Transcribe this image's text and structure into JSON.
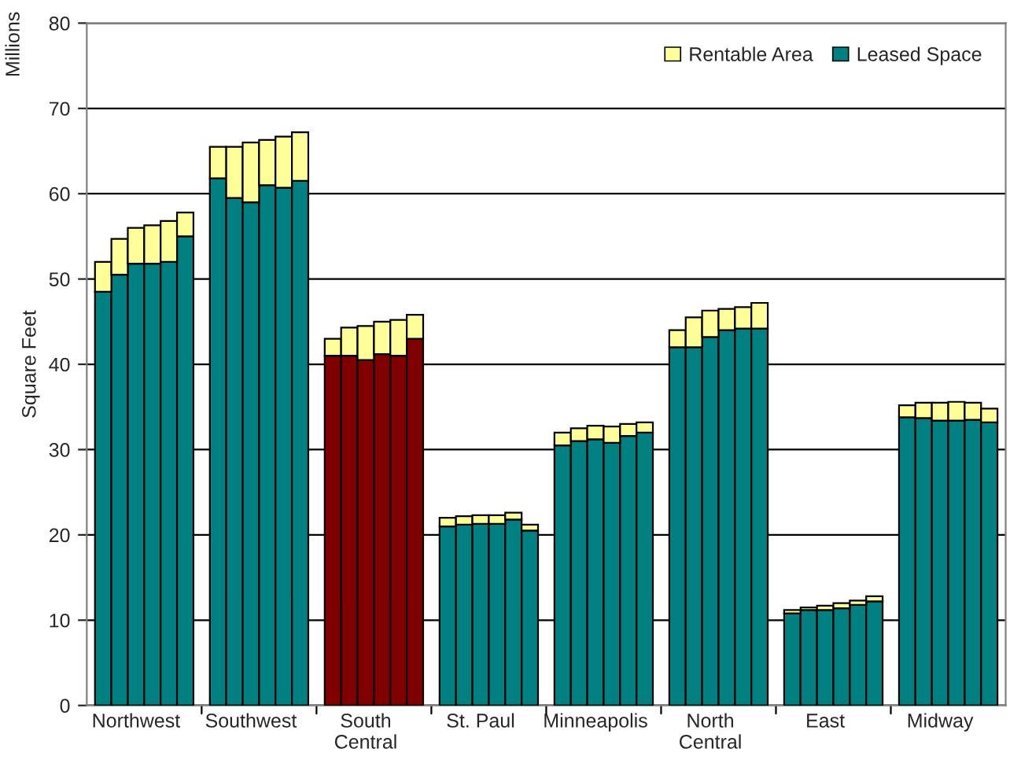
{
  "chart_data": {
    "type": "bar",
    "stacked": true,
    "categories": [
      null,
      null,
      "Northwest",
      null,
      null,
      null,
      null,
      null,
      null,
      "Southwest",
      null,
      null,
      null,
      null,
      null,
      null,
      "South\nCentral",
      null,
      null,
      null,
      null,
      null,
      null,
      "St. Paul",
      null,
      null,
      null,
      null,
      null,
      null,
      "Minneapolis",
      null,
      null,
      null,
      null,
      null,
      null,
      "North\nCentral",
      null,
      null,
      null,
      null,
      null,
      null,
      "East",
      null,
      null,
      null,
      null,
      null,
      null,
      "Midway",
      null,
      null,
      null
    ],
    "series": [
      {
        "name": "Leased Space",
        "color": "#008080",
        "colors": [
          "#008080",
          "#008080",
          "#008080",
          "#008080",
          "#008080",
          "#008080",
          null,
          "#008080",
          "#008080",
          "#008080",
          "#008080",
          "#008080",
          "#008080",
          null,
          "#800000",
          "#800000",
          "#800000",
          "#800000",
          "#800000",
          "#800000",
          null,
          "#008080",
          "#008080",
          "#008080",
          "#008080",
          "#008080",
          "#008080",
          null,
          "#008080",
          "#008080",
          "#008080",
          "#008080",
          "#008080",
          "#008080",
          null,
          "#008080",
          "#008080",
          "#008080",
          "#008080",
          "#008080",
          "#008080",
          null,
          "#008080",
          "#008080",
          "#008080",
          "#008080",
          "#008080",
          "#008080",
          null,
          "#008080",
          "#008080",
          "#008080",
          "#008080",
          "#008080",
          "#008080"
        ],
        "values": [
          48.5,
          50.5,
          51.8,
          51.8,
          52,
          55,
          null,
          61.8,
          59.5,
          59,
          61,
          60.7,
          61.5,
          null,
          41,
          41,
          40.5,
          41.2,
          41,
          43,
          null,
          21,
          21.2,
          21.3,
          21.3,
          21.8,
          20.5,
          null,
          30.5,
          31,
          31.2,
          30.8,
          31.6,
          32,
          null,
          42,
          42,
          43.2,
          44,
          44.2,
          44.2,
          null,
          10.8,
          11.2,
          11.2,
          11.4,
          11.8,
          12.2,
          null,
          33.8,
          33.7,
          33.4,
          33.4,
          33.5,
          33.2
        ]
      },
      {
        "name": "Rentable Area",
        "color": "#ffff99",
        "values": [
          3.5,
          4.2,
          4.2,
          4.5,
          4.8,
          2.8,
          null,
          3.7,
          6,
          7,
          5.3,
          6,
          5.7,
          null,
          2,
          3.3,
          4,
          3.8,
          4.2,
          2.8,
          null,
          1,
          1,
          1,
          1,
          0.8,
          0.7,
          null,
          1.5,
          1.5,
          1.6,
          1.9,
          1.4,
          1.2,
          null,
          2,
          3.5,
          3.1,
          2.5,
          2.5,
          3,
          null,
          0.4,
          0.3,
          0.5,
          0.6,
          0.5,
          0.6,
          null,
          1.4,
          1.8,
          2.1,
          2.2,
          2,
          1.6
        ]
      }
    ],
    "ylabel": "Square Feet",
    "annotations": [
      "Millions"
    ],
    "ylim": [
      0,
      80
    ],
    "yticks": [
      0,
      10,
      20,
      30,
      40,
      50,
      60,
      70,
      80
    ],
    "grid": "y",
    "legend": "top right"
  }
}
